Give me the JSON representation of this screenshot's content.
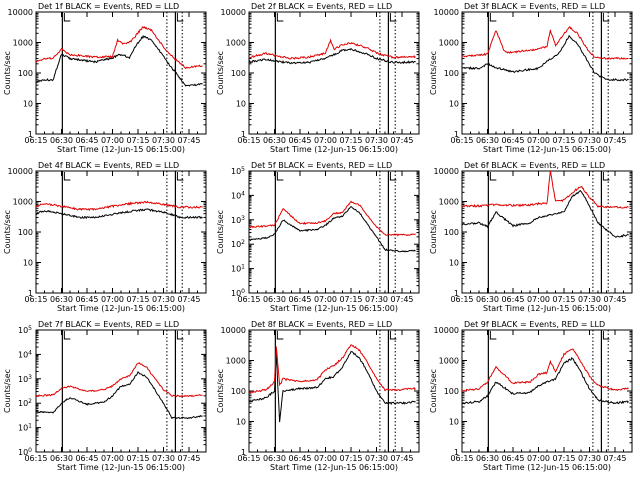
{
  "figure": {
    "xtick_labels": [
      "06:15",
      "06:30",
      "06:45",
      "07:00",
      "07:15",
      "07:30",
      "07:45"
    ],
    "xlabel": "Start Time (12-Jun-15 06:15:00)",
    "ylabel": "Counts/sec",
    "subtitle_suffix": "BLACK = Events, RED = LLD"
  },
  "chart_data": [
    {
      "type": "line",
      "title": "Det 1f BLACK = Events, RED = LLD",
      "xlabel": "Start Time (12-Jun-15 06:15:00)",
      "ylabel": "Counts/sec",
      "yscale": "log",
      "ylim": [
        1,
        10000
      ],
      "ytick_labels": [
        "1",
        "10",
        "100",
        "1000",
        "10000"
      ],
      "series": [
        {
          "name": "Events",
          "color": "#000000",
          "x": [
            "06:15",
            "06:20",
            "06:25",
            "06:30",
            "06:35",
            "06:45",
            "06:50",
            "06:55",
            "07:00",
            "07:03",
            "07:06",
            "07:10",
            "07:13",
            "07:18",
            "07:23",
            "07:28",
            "07:33",
            "07:38",
            "07:43",
            "07:48",
            "07:53"
          ],
          "values": [
            50,
            60,
            60,
            420,
            300,
            250,
            230,
            280,
            300,
            400,
            400,
            300,
            700,
            1600,
            1200,
            500,
            200,
            90,
            40,
            40,
            45
          ]
        },
        {
          "name": "LLD",
          "color": "#e00000",
          "x": [
            "06:15",
            "06:20",
            "06:25",
            "06:30",
            "06:35",
            "06:45",
            "06:50",
            "06:55",
            "07:00",
            "07:03",
            "07:06",
            "07:10",
            "07:13",
            "07:18",
            "07:23",
            "07:28",
            "07:33",
            "07:38",
            "07:43",
            "07:48",
            "07:53"
          ],
          "values": [
            230,
            300,
            300,
            620,
            400,
            350,
            330,
            340,
            340,
            1200,
            900,
            1000,
            1500,
            3300,
            2500,
            1000,
            450,
            250,
            150,
            160,
            170
          ]
        }
      ]
    },
    {
      "type": "line",
      "title": "Det 2f BLACK = Events, RED = LLD",
      "xlabel": "Start Time (12-Jun-15 06:15:00)",
      "ylabel": "Counts/sec",
      "yscale": "log",
      "ylim": [
        1,
        10000
      ],
      "ytick_labels": [
        "1",
        "10",
        "100",
        "1000",
        "10000"
      ],
      "series": [
        {
          "name": "Events",
          "color": "#000000",
          "x": [
            "06:15",
            "06:25",
            "06:30",
            "06:40",
            "06:50",
            "07:00",
            "07:05",
            "07:10",
            "07:15",
            "07:20",
            "07:25",
            "07:30",
            "07:40",
            "07:53"
          ],
          "values": [
            230,
            280,
            250,
            210,
            220,
            300,
            400,
            550,
            600,
            500,
            400,
            300,
            220,
            230
          ]
        },
        {
          "name": "LLD",
          "color": "#e00000",
          "x": [
            "06:15",
            "06:25",
            "06:30",
            "06:40",
            "06:50",
            "07:00",
            "07:03",
            "07:05",
            "07:10",
            "07:15",
            "07:20",
            "07:25",
            "07:30",
            "07:40",
            "07:53"
          ],
          "values": [
            330,
            440,
            380,
            300,
            330,
            450,
            1200,
            600,
            850,
            950,
            800,
            650,
            450,
            320,
            340
          ]
        }
      ]
    },
    {
      "type": "line",
      "title": "Det 3f BLACK = Events, RED = LLD",
      "xlabel": "Start Time (12-Jun-15 06:15:00)",
      "ylabel": "Counts/sec",
      "yscale": "log",
      "ylim": [
        1,
        10000
      ],
      "ytick_labels": [
        "1",
        "10",
        "100",
        "1000",
        "10000"
      ],
      "series": [
        {
          "name": "Events",
          "color": "#000000",
          "x": [
            "06:15",
            "06:25",
            "06:30",
            "06:35",
            "06:45",
            "06:50",
            "07:00",
            "07:05",
            "07:08",
            "07:12",
            "07:18",
            "07:23",
            "07:28",
            "07:33",
            "07:40",
            "07:53"
          ],
          "values": [
            150,
            140,
            200,
            150,
            110,
            120,
            140,
            250,
            300,
            450,
            1600,
            900,
            300,
            100,
            60,
            60
          ]
        },
        {
          "name": "LLD",
          "color": "#e00000",
          "x": [
            "06:15",
            "06:25",
            "06:30",
            "06:35",
            "06:40",
            "06:45",
            "06:50",
            "07:00",
            "07:05",
            "07:07",
            "07:10",
            "07:18",
            "07:23",
            "07:28",
            "07:33",
            "07:40",
            "07:53"
          ],
          "values": [
            350,
            380,
            420,
            2500,
            500,
            460,
            520,
            600,
            750,
            2500,
            800,
            3200,
            2000,
            700,
            320,
            300,
            300
          ]
        }
      ]
    },
    {
      "type": "line",
      "title": "Det 4f BLACK = Events, RED = LLD",
      "xlabel": "Start Time (12-Jun-15 06:15:00)",
      "ylabel": "Counts/sec",
      "yscale": "log",
      "ylim": [
        1,
        10000
      ],
      "ytick_labels": [
        "1",
        "10",
        "100",
        "1000",
        "10000"
      ],
      "series": [
        {
          "name": "Events",
          "color": "#000000",
          "x": [
            "06:15",
            "06:20",
            "06:30",
            "06:40",
            "06:50",
            "07:00",
            "07:10",
            "07:20",
            "07:30",
            "07:40",
            "07:53"
          ],
          "values": [
            400,
            500,
            400,
            300,
            300,
            380,
            470,
            550,
            450,
            300,
            300
          ]
        },
        {
          "name": "LLD",
          "color": "#e00000",
          "x": [
            "06:15",
            "06:20",
            "06:30",
            "06:40",
            "06:50",
            "07:00",
            "07:10",
            "07:20",
            "07:30",
            "07:40",
            "07:53"
          ],
          "values": [
            700,
            850,
            700,
            550,
            550,
            700,
            850,
            950,
            800,
            650,
            650
          ]
        }
      ]
    },
    {
      "type": "line",
      "title": "Det 5f BLACK = Events, RED = LLD",
      "xlabel": "Start Time (12-Jun-15 06:15:00)",
      "ylabel": "Counts/sec",
      "yscale": "log",
      "ylim": [
        1,
        100000
      ],
      "ytick_labels": [
        "10^0",
        "10^1",
        "10^2",
        "10^3",
        "10^4",
        "10^5"
      ],
      "series": [
        {
          "name": "Events",
          "color": "#000000",
          "x": [
            "06:15",
            "06:25",
            "06:30",
            "06:35",
            "06:45",
            "06:55",
            "07:00",
            "07:05",
            "07:10",
            "07:15",
            "07:20",
            "07:25",
            "07:30",
            "07:35",
            "07:45",
            "07:53"
          ],
          "values": [
            150,
            180,
            250,
            1000,
            350,
            400,
            600,
            1200,
            1400,
            3500,
            2000,
            600,
            200,
            60,
            50,
            55
          ]
        },
        {
          "name": "LLD",
          "color": "#e00000",
          "x": [
            "06:15",
            "06:25",
            "06:30",
            "06:35",
            "06:45",
            "06:55",
            "07:00",
            "07:05",
            "07:10",
            "07:15",
            "07:20",
            "07:25",
            "07:30",
            "07:35",
            "07:45",
            "07:53"
          ],
          "values": [
            500,
            550,
            600,
            2800,
            700,
            750,
            900,
            1800,
            2000,
            5500,
            4000,
            1400,
            500,
            250,
            240,
            250
          ]
        }
      ]
    },
    {
      "type": "line",
      "title": "Det 6f BLACK = Events, RED = LLD",
      "xlabel": "Start Time (12-Jun-15 06:15:00)",
      "ylabel": "Counts/sec",
      "yscale": "log",
      "ylim": [
        1,
        10000
      ],
      "ytick_labels": [
        "1",
        "10",
        "100",
        "1000",
        "10000"
      ],
      "series": [
        {
          "name": "Events",
          "color": "#000000",
          "x": [
            "06:15",
            "06:25",
            "06:30",
            "06:35",
            "06:45",
            "06:55",
            "07:00",
            "07:05",
            "07:10",
            "07:15",
            "07:20",
            "07:25",
            "07:30",
            "07:35",
            "07:45",
            "07:53"
          ],
          "values": [
            180,
            200,
            150,
            450,
            160,
            200,
            300,
            350,
            400,
            450,
            1500,
            2300,
            700,
            200,
            70,
            80
          ]
        },
        {
          "name": "LLD",
          "color": "#e00000",
          "x": [
            "06:15",
            "06:25",
            "06:30",
            "06:35",
            "06:45",
            "06:55",
            "07:00",
            "07:05",
            "07:07",
            "07:10",
            "07:15",
            "07:20",
            "07:25",
            "07:30",
            "07:35",
            "07:45",
            "07:53"
          ],
          "values": [
            700,
            720,
            750,
            800,
            740,
            760,
            850,
            900,
            10000,
            1000,
            1100,
            2000,
            3200,
            1400,
            700,
            650,
            650
          ]
        }
      ]
    },
    {
      "type": "line",
      "title": "Det 7f BLACK = Events, RED = LLD",
      "xlabel": "Start Time (12-Jun-15 06:15:00)",
      "ylabel": "Counts/sec",
      "yscale": "log",
      "ylim": [
        1,
        100000
      ],
      "ytick_labels": [
        "10^0",
        "10^1",
        "10^2",
        "10^3",
        "10^4",
        "10^5"
      ],
      "series": [
        {
          "name": "Events",
          "color": "#000000",
          "x": [
            "06:15",
            "06:25",
            "06:30",
            "06:35",
            "06:45",
            "06:55",
            "07:00",
            "07:05",
            "07:10",
            "07:15",
            "07:20",
            "07:25",
            "07:30",
            "07:35",
            "07:45",
            "07:53"
          ],
          "values": [
            45,
            40,
            100,
            170,
            90,
            110,
            200,
            500,
            600,
            1800,
            1200,
            350,
            100,
            25,
            25,
            30
          ]
        },
        {
          "name": "LLD",
          "color": "#e00000",
          "x": [
            "06:15",
            "06:25",
            "06:30",
            "06:35",
            "06:45",
            "06:55",
            "07:00",
            "07:05",
            "07:10",
            "07:15",
            "07:20",
            "07:25",
            "07:30",
            "07:35",
            "07:45",
            "07:53"
          ],
          "values": [
            200,
            220,
            400,
            500,
            300,
            360,
            500,
            1000,
            1300,
            4500,
            3000,
            1000,
            350,
            200,
            200,
            210
          ]
        }
      ]
    },
    {
      "type": "line",
      "title": "Det 8f BLACK = Events, RED = LLD",
      "xlabel": "Start Time (12-Jun-15 06:15:00)",
      "ylabel": "Counts/sec",
      "yscale": "log",
      "ylim": [
        1,
        10000
      ],
      "ytick_labels": [
        "1",
        "10",
        "100",
        "1000",
        "10000"
      ],
      "series": [
        {
          "name": "Events",
          "color": "#000000",
          "x": [
            "06:15",
            "06:25",
            "06:30",
            "06:31",
            "06:33",
            "06:35",
            "06:45",
            "06:55",
            "07:00",
            "07:05",
            "07:10",
            "07:15",
            "07:20",
            "07:25",
            "07:30",
            "07:35",
            "07:45",
            "07:53"
          ],
          "values": [
            45,
            60,
            100,
            1800,
            10,
            100,
            120,
            130,
            250,
            300,
            600,
            2000,
            1200,
            400,
            100,
            40,
            40,
            45
          ]
        },
        {
          "name": "LLD",
          "color": "#e00000",
          "x": [
            "06:15",
            "06:25",
            "06:30",
            "06:31",
            "06:33",
            "06:35",
            "06:45",
            "06:55",
            "07:00",
            "07:05",
            "07:10",
            "07:15",
            "07:20",
            "07:25",
            "07:30",
            "07:35",
            "07:45",
            "07:53"
          ],
          "values": [
            90,
            110,
            200,
            3000,
            150,
            250,
            200,
            230,
            500,
            700,
            1200,
            3400,
            2200,
            800,
            250,
            110,
            110,
            120
          ]
        }
      ]
    },
    {
      "type": "line",
      "title": "Det 9f BLACK = Events, RED = LLD",
      "xlabel": "Start Time (12-Jun-15 06:15:00)",
      "ylabel": "Counts/sec",
      "yscale": "log",
      "ylim": [
        1,
        10000
      ],
      "ytick_labels": [
        "1",
        "10",
        "100",
        "1000",
        "10000"
      ],
      "series": [
        {
          "name": "Events",
          "color": "#000000",
          "x": [
            "06:15",
            "06:25",
            "06:30",
            "06:35",
            "06:45",
            "06:55",
            "07:00",
            "07:05",
            "07:10",
            "07:15",
            "07:20",
            "07:25",
            "07:30",
            "07:35",
            "07:45",
            "07:53"
          ],
          "values": [
            40,
            45,
            70,
            200,
            80,
            90,
            150,
            200,
            250,
            800,
            1200,
            400,
            120,
            50,
            40,
            45
          ]
        },
        {
          "name": "LLD",
          "color": "#e00000",
          "x": [
            "06:15",
            "06:25",
            "06:30",
            "06:35",
            "06:45",
            "06:55",
            "07:00",
            "07:05",
            "07:07",
            "07:10",
            "07:15",
            "07:20",
            "07:25",
            "07:30",
            "07:35",
            "07:45",
            "07:53"
          ],
          "values": [
            100,
            120,
            200,
            600,
            180,
            200,
            350,
            400,
            900,
            450,
            1600,
            2500,
            900,
            300,
            150,
            110,
            120
          ]
        }
      ]
    }
  ]
}
